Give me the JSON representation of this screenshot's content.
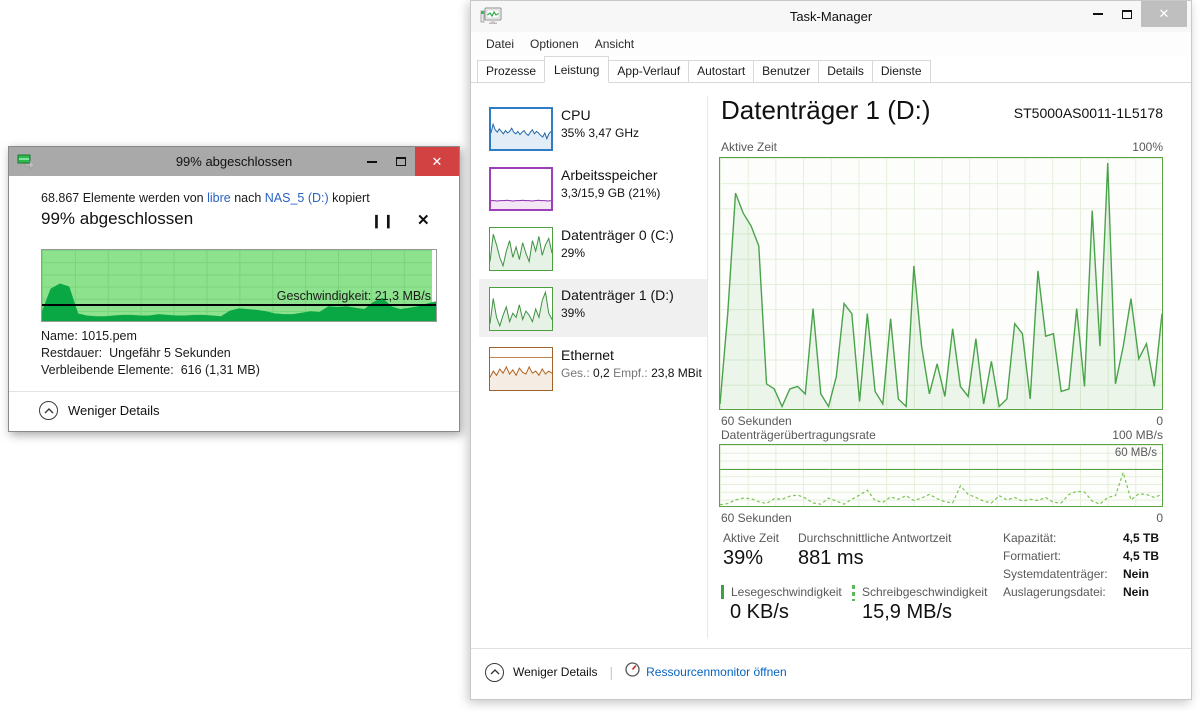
{
  "copy_dialog": {
    "title": "99% abgeschlossen",
    "header": {
      "prefix": "68.867 Elemente werden von ",
      "source": "libre",
      "mid": " nach ",
      "dest": "NAS_5 (D:)",
      "suffix": " kopiert"
    },
    "progress_heading": "99% abgeschlossen",
    "progress_percent": 99,
    "speed_label": "Geschwindigkeit: 21,3 MB/s",
    "details": {
      "name_label": "Name:",
      "name_value": "1015.pem",
      "rest_label": "Restdauer:",
      "rest_value": "Ungefähr 5 Sekunden",
      "remaining_label": "Verbleibende Elemente:",
      "remaining_value": "616 (1,31 MB)"
    },
    "footer_label": "Weniger Details",
    "chart": {
      "avg_line_percent": 21,
      "speed_history": [
        12,
        45,
        52,
        48,
        10,
        7,
        6,
        6,
        7,
        8,
        8,
        7,
        7,
        9,
        8,
        7,
        7,
        8,
        8,
        7,
        6,
        14,
        17,
        16,
        15,
        13,
        10,
        9,
        9,
        11,
        13,
        12,
        20,
        19,
        20,
        18,
        16,
        26,
        32,
        20,
        16,
        18,
        20,
        24,
        27
      ]
    }
  },
  "taskmanager": {
    "title": "Task-Manager",
    "menu": {
      "items": [
        "Datei",
        "Optionen",
        "Ansicht"
      ]
    },
    "tabs": {
      "items": [
        "Prozesse",
        "Leistung",
        "App-Verlauf",
        "Autostart",
        "Benutzer",
        "Details",
        "Dienste"
      ],
      "active": "Leistung"
    },
    "sidebar": {
      "items": [
        {
          "title": "CPU",
          "subtitle": "35% 3,47 GHz",
          "spark": [
            40,
            62,
            48,
            42,
            50,
            44,
            38,
            46,
            40,
            44,
            52,
            42,
            38,
            44,
            36,
            42,
            46,
            38,
            34,
            42,
            48,
            38,
            44,
            40,
            34,
            30,
            40,
            26,
            38,
            44
          ]
        },
        {
          "title": "Arbeitsspeicher",
          "subtitle": "3,3/15,9 GB (21%)",
          "spark": [
            21,
            21,
            20,
            21,
            21,
            22,
            21,
            20,
            21,
            21,
            22,
            21,
            21,
            20,
            21,
            22,
            21,
            21,
            20,
            21
          ]
        },
        {
          "title": "Datenträger 0 (C:)",
          "subtitle": "29%",
          "spark": [
            20,
            85,
            60,
            30,
            10,
            45,
            70,
            30,
            55,
            25,
            65,
            40,
            20,
            70,
            45,
            80,
            35,
            60,
            75,
            40
          ]
        },
        {
          "title": "Datenträger 1 (D:)",
          "subtitle": "39%",
          "spark": [
            15,
            75,
            30,
            10,
            35,
            55,
            20,
            40,
            30,
            60,
            25,
            45,
            35,
            20,
            50,
            30,
            70,
            90,
            40,
            25
          ]
        },
        {
          "title": "Ethernet",
          "ges_label": "Ges.:",
          "ges_value": "0,2",
          "empf_label": "Empf.:",
          "empf_value": "23,8 MBit",
          "spark": [
            30,
            45,
            35,
            50,
            40,
            55,
            38,
            48,
            35,
            52,
            42,
            38,
            55,
            40,
            45,
            35,
            50,
            38,
            45,
            40
          ]
        }
      ]
    },
    "main": {
      "heading": "Datenträger 1 (D:)",
      "device": "ST5000AS0011-1L5178",
      "active_chart": {
        "label": "Aktive Zeit",
        "max_label": "100%",
        "x_left": "60 Sekunden",
        "x_right": "0",
        "unit": "percent",
        "range": [
          0,
          100
        ],
        "values": [
          2,
          38,
          86,
          78,
          73,
          65,
          10,
          8,
          1,
          8,
          9,
          6,
          40,
          6,
          1,
          13,
          42,
          38,
          3,
          38,
          7,
          2,
          36,
          4,
          1,
          57,
          25,
          6,
          18,
          5,
          32,
          9,
          5,
          28,
          2,
          19,
          1,
          4,
          34,
          30,
          4,
          55,
          29,
          30,
          7,
          8,
          40,
          9,
          79,
          25,
          98,
          10,
          25,
          44,
          20,
          26,
          9,
          38
        ]
      },
      "rate_chart": {
        "label": "Datenträgerübertragungsrate",
        "max_label": "100 MB/s",
        "threshold_label": "60 MB/s",
        "threshold": 60,
        "x_left": "60 Sekunden",
        "x_right": "0",
        "unit": "MB/s",
        "range": [
          0,
          100
        ],
        "values": [
          2,
          4,
          10,
          13,
          12,
          7,
          4,
          12,
          11,
          16,
          18,
          13,
          5,
          3,
          13,
          8,
          3,
          11,
          18,
          26,
          9,
          6,
          15,
          11,
          17,
          9,
          13,
          19,
          12,
          7,
          5,
          33,
          19,
          14,
          8,
          5,
          17,
          10,
          14,
          8,
          11,
          9,
          14,
          6,
          5,
          19,
          24,
          23,
          8,
          3,
          14,
          17,
          55,
          10,
          20,
          19,
          14,
          19
        ]
      },
      "stats": {
        "active_label": "Aktive Zeit",
        "active_value": "39%",
        "response_label": "Durchschnittliche Antwortzeit",
        "response_value": "881 ms",
        "read_label": "Lesegeschwindigkeit",
        "read_value": "0 KB/s",
        "write_label": "Schreibgeschwindigkeit",
        "write_value": "15,9 MB/s",
        "right_rows": [
          {
            "label": "Kapazität:",
            "value": "4,5 TB"
          },
          {
            "label": "Formatiert:",
            "value": "4,5 TB"
          },
          {
            "label": "Systemdatenträger:",
            "value": "Nein"
          },
          {
            "label": "Auslagerungsdatei:",
            "value": "Nein"
          }
        ]
      }
    },
    "footer": {
      "less_details": "Weniger Details",
      "resmon": "Ressourcenmonitor öffnen"
    }
  },
  "colors": {
    "cpu": "#2f7cc4",
    "memory": "#9b40b8",
    "disk": "#4d9e3f",
    "ethernet": "#a0612a",
    "chart_green_border": "#5aa243",
    "chart_green_line": "#4aa34a",
    "copy_fill": "#8de28d",
    "copy_speed": "#0aa845",
    "close_red": "#d24242",
    "link_blue": "#2962c4"
  }
}
